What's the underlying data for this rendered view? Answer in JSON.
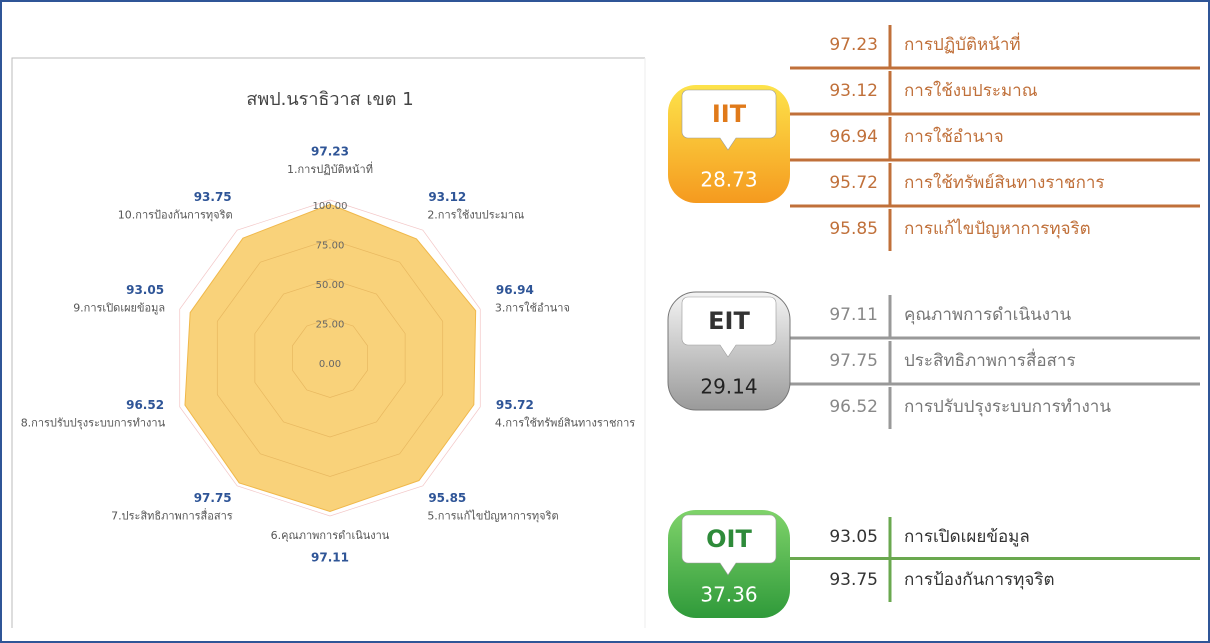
{
  "chart_data": {
    "type": "radar",
    "title": "สพป.นราธิวาส เขต 1",
    "categories": [
      "1.การปฏิบัติหน้าที่",
      "2.การใช้งบประมาณ",
      "3.การใช้อำนาจ",
      "4.การใช้ทรัพย์สินทางราชการ",
      "5.การแก้ไขปัญหาการทุจริต",
      "6.คุณภาพการดำเนินงาน",
      "7.ประสิทธิภาพการสื่อสาร",
      "8.การปรับปรุงระบบการทำงาน",
      "9.การเปิดเผยข้อมูล",
      "10.การป้องกันการทุจริต"
    ],
    "values": [
      97.23,
      93.12,
      96.94,
      95.72,
      95.85,
      97.11,
      97.75,
      96.52,
      93.05,
      93.75
    ],
    "color": "#f9d27a",
    "rlim": [
      0,
      100
    ],
    "rticks": [
      {
        "value": 0,
        "label": "0.00"
      },
      {
        "value": 25,
        "label": "25.00"
      },
      {
        "value": 50,
        "label": "50.00"
      },
      {
        "value": 75,
        "label": "75.00"
      },
      {
        "value": 100,
        "label": "100.00"
      }
    ]
  },
  "panels": [
    {
      "name": "IIT",
      "score": "28.73",
      "color": "#c0703a",
      "items": [
        {
          "value": "97.23",
          "label": "การปฏิบัติหน้าที่"
        },
        {
          "value": "93.12",
          "label": "การใช้งบประมาณ"
        },
        {
          "value": "96.94",
          "label": "การใช้อำนาจ"
        },
        {
          "value": "95.72",
          "label": "การใช้ทรัพย์สินทางราชการ"
        },
        {
          "value": "95.85",
          "label": "การแก้ไขปัญหาการทุจริต"
        }
      ]
    },
    {
      "name": "EIT",
      "score": "29.14",
      "color": "#999999",
      "items": [
        {
          "value": "97.11",
          "label": "คุณภาพการดำเนินงาน"
        },
        {
          "value": "97.75",
          "label": "ประสิทธิภาพการสื่อสาร"
        },
        {
          "value": "96.52",
          "label": "การปรับปรุงระบบการทำงาน"
        }
      ]
    },
    {
      "name": "OIT",
      "score": "37.36",
      "color": "#6aa84f",
      "items": [
        {
          "value": "93.05",
          "label": "การเปิดเผยข้อมูล"
        },
        {
          "value": "93.75",
          "label": "การป้องกันการทุจริต"
        }
      ]
    }
  ]
}
